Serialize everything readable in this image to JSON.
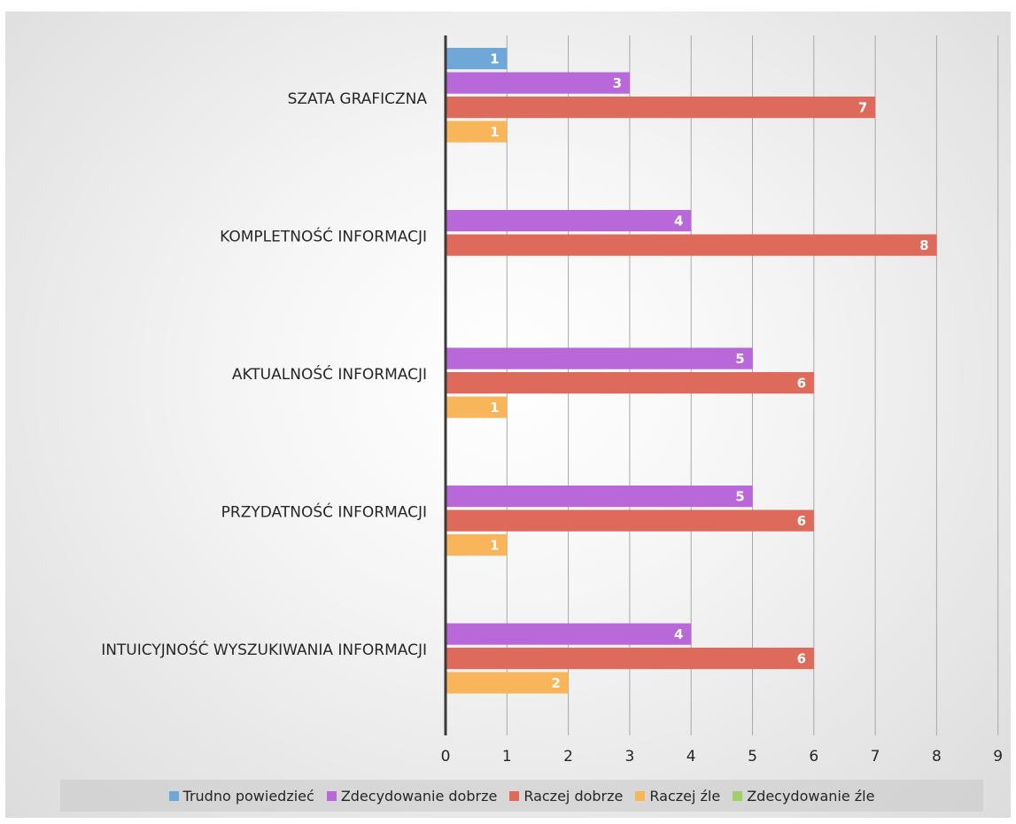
{
  "chart_data": {
    "type": "bar",
    "orientation": "horizontal",
    "categories": [
      "SZATA GRAFICZNA",
      "KOMPLETNOŚĆ INFORMACJI",
      "AKTUALNOŚĆ INFORMACJI",
      "PRZYDATNOŚĆ INFORMACJI",
      "INTUICYJNOŚĆ WYSZUKIWANIA INFORMACJI"
    ],
    "series": [
      {
        "name": "Trudno powiedzieć",
        "color": "#6fa8d6",
        "values": [
          1,
          0,
          0,
          0,
          0
        ]
      },
      {
        "name": "Zdecydowanie dobrze",
        "color": "#b868d8",
        "values": [
          3,
          4,
          5,
          5,
          4
        ]
      },
      {
        "name": "Raczej dobrze",
        "color": "#dd6a5a",
        "values": [
          7,
          8,
          6,
          6,
          6
        ]
      },
      {
        "name": "Raczej źle",
        "color": "#f8b55a",
        "values": [
          1,
          0,
          1,
          1,
          2
        ]
      },
      {
        "name": "Zdecydowanie źle",
        "color": "#9fd06a",
        "values": [
          0,
          0,
          0,
          0,
          0
        ]
      }
    ],
    "xlim": [
      0,
      9
    ],
    "xticks": [
      "0",
      "1",
      "2",
      "3",
      "4",
      "5",
      "6",
      "7",
      "8",
      "9"
    ],
    "grid": true,
    "legend_position": "bottom"
  }
}
